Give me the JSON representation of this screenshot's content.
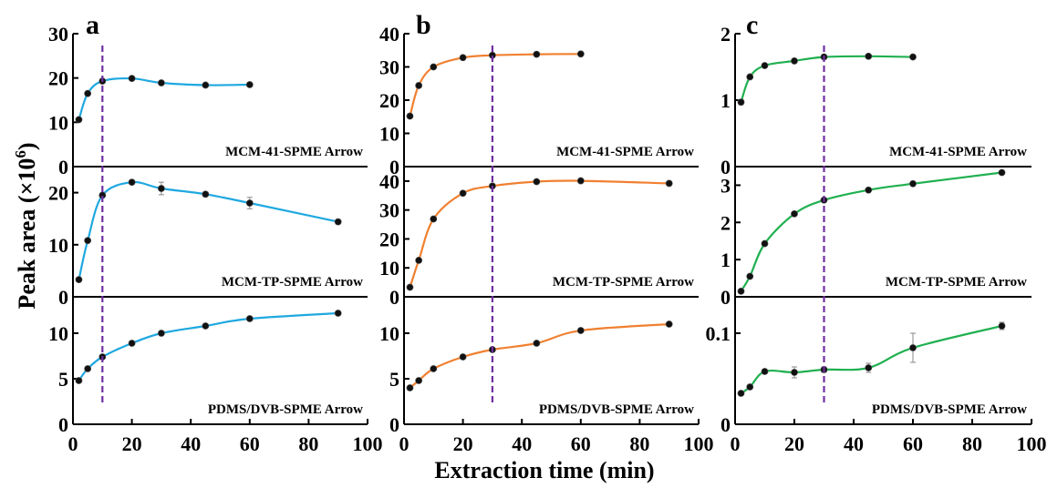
{
  "figure": {
    "ylabel_main": "Peak area (×10",
    "ylabel_exp": "6",
    "ylabel_close": ")",
    "xlabel": "Extraction time (min)"
  },
  "chart_data": [
    {
      "panel": "a",
      "color": "#1fa8e0",
      "x_ticks": [
        0,
        20,
        40,
        60,
        80,
        100
      ],
      "xlim": [
        0,
        100
      ],
      "vline_x": 10,
      "subplots": [
        {
          "label": "MCM-41-SPME Arrow",
          "ylim": [
            0,
            30
          ],
          "yticks": [
            0,
            10,
            20,
            30
          ],
          "points": [
            [
              2,
              10.6
            ],
            [
              5,
              16.5
            ],
            [
              10,
              19.3
            ],
            [
              20,
              19.9
            ],
            [
              30,
              18.9
            ],
            [
              45,
              18.4
            ],
            [
              60,
              18.5
            ]
          ],
          "errors": []
        },
        {
          "label": "MCM-TP-SPME Arrow",
          "ylim": [
            0,
            25
          ],
          "yticks": [
            0,
            10,
            20
          ],
          "points": [
            [
              2,
              3.3
            ],
            [
              5,
              10.8
            ],
            [
              10,
              19.5
            ],
            [
              20,
              22.0
            ],
            [
              30,
              20.8
            ],
            [
              45,
              19.7
            ],
            [
              60,
              18.0
            ],
            [
              90,
              14.4
            ]
          ],
          "errors": [
            0.3,
            0.3,
            0.4,
            0.4,
            1.2,
            0.4,
            1.1,
            0.4
          ]
        },
        {
          "label": "PDMS/DVB-SPME Arrow",
          "ylim": [
            0,
            14
          ],
          "yticks": [
            0,
            5,
            10
          ],
          "points": [
            [
              2,
              4.8
            ],
            [
              5,
              6.1
            ],
            [
              10,
              7.4
            ],
            [
              20,
              8.9
            ],
            [
              30,
              10.0
            ],
            [
              45,
              10.8
            ],
            [
              60,
              11.6
            ],
            [
              90,
              12.2
            ]
          ],
          "errors": []
        }
      ]
    },
    {
      "panel": "b",
      "color": "#f08030",
      "x_ticks": [
        0,
        20,
        40,
        60,
        80,
        100
      ],
      "xlim": [
        0,
        100
      ],
      "vline_x": 30,
      "subplots": [
        {
          "label": "MCM-41-SPME Arrow",
          "ylim": [
            0,
            40
          ],
          "yticks": [
            0,
            10,
            20,
            30,
            40
          ],
          "points": [
            [
              2,
              15.2
            ],
            [
              5,
              24.4
            ],
            [
              10,
              30.0
            ],
            [
              20,
              32.8
            ],
            [
              30,
              33.5
            ],
            [
              45,
              33.8
            ],
            [
              60,
              33.9
            ]
          ],
          "errors": []
        },
        {
          "label": "MCM-TP-SPME Arrow",
          "ylim": [
            0,
            45
          ],
          "yticks": [
            0,
            10,
            20,
            30,
            40
          ],
          "points": [
            [
              2,
              3.3
            ],
            [
              5,
              12.6
            ],
            [
              10,
              26.9
            ],
            [
              20,
              35.8
            ],
            [
              30,
              38.3
            ],
            [
              45,
              39.8
            ],
            [
              60,
              40.1
            ],
            [
              90,
              39.2
            ]
          ],
          "errors": []
        },
        {
          "label": "PDMS/DVB-SPME Arrow",
          "ylim": [
            0,
            14
          ],
          "yticks": [
            0,
            5,
            10
          ],
          "points": [
            [
              2,
              4.0
            ],
            [
              5,
              4.8
            ],
            [
              10,
              6.1
            ],
            [
              20,
              7.4
            ],
            [
              30,
              8.2
            ],
            [
              45,
              8.9
            ],
            [
              60,
              10.3
            ],
            [
              90,
              11.0
            ]
          ],
          "errors": []
        }
      ]
    },
    {
      "panel": "c",
      "color": "#20b050",
      "x_ticks": [
        0,
        20,
        40,
        60,
        80,
        100
      ],
      "xlim": [
        0,
        100
      ],
      "vline_x": 30,
      "subplots": [
        {
          "label": "MCM-41-SPME Arrow",
          "ylim": [
            0,
            2
          ],
          "yticks": [
            0,
            1,
            2
          ],
          "points": [
            [
              2,
              0.97
            ],
            [
              5,
              1.35
            ],
            [
              10,
              1.52
            ],
            [
              20,
              1.59
            ],
            [
              30,
              1.65
            ],
            [
              45,
              1.66
            ],
            [
              60,
              1.65
            ]
          ],
          "errors": [
            0.04,
            0.02,
            0.02,
            0.02,
            0.02,
            0.02,
            0.02
          ]
        },
        {
          "label": "MCM-TP-SPME Arrow",
          "ylim": [
            0,
            3.5
          ],
          "yticks": [
            0,
            1,
            2,
            3
          ],
          "points": [
            [
              2,
              0.15
            ],
            [
              5,
              0.55
            ],
            [
              10,
              1.43
            ],
            [
              20,
              2.23
            ],
            [
              30,
              2.6
            ],
            [
              45,
              2.87
            ],
            [
              60,
              3.04
            ],
            [
              90,
              3.34
            ]
          ],
          "errors": []
        },
        {
          "label": "PDMS/DVB-SPME Arrow",
          "ylim": [
            0,
            0.14
          ],
          "yticks": [
            0.1
          ],
          "extra_yticks": [
            0
          ],
          "points": [
            [
              2,
              0.034
            ],
            [
              5,
              0.041
            ],
            [
              10,
              0.058
            ],
            [
              20,
              0.057
            ],
            [
              30,
              0.06
            ],
            [
              45,
              0.062
            ],
            [
              60,
              0.084
            ],
            [
              90,
              0.108
            ]
          ],
          "errors": [
            0.002,
            0.002,
            0.002,
            0.006,
            0.003,
            0.005,
            0.016,
            0.004
          ]
        }
      ]
    }
  ]
}
